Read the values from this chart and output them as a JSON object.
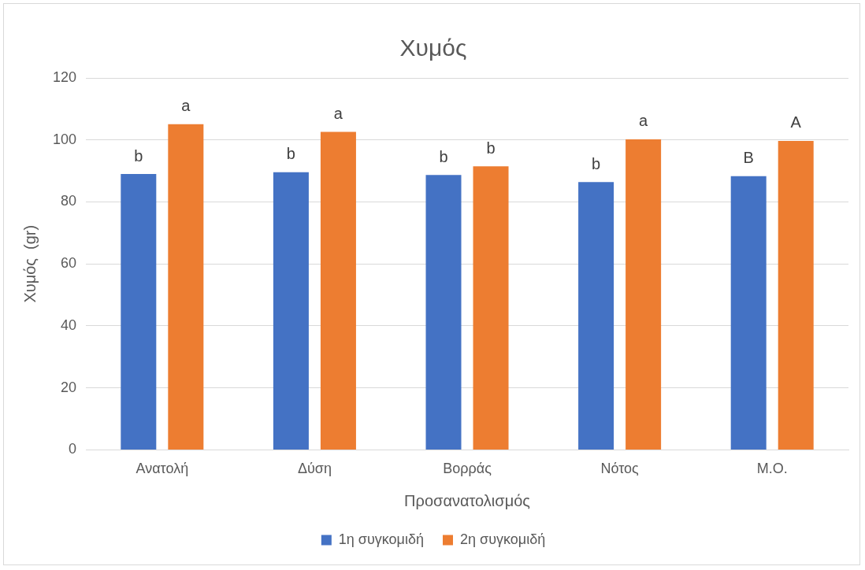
{
  "chart_data": {
    "type": "bar",
    "title": "Χυμός",
    "xlabel": "Προσανατολισμός",
    "ylabel": "Χυμός  (gr)",
    "categories": [
      "Ανατολή",
      "Δύση",
      "Βορράς",
      "Νότος",
      "Μ.Ο."
    ],
    "series": [
      {
        "name": "1η συγκομιδή",
        "color": "#4472c4",
        "values": [
          89.0,
          89.6,
          88.7,
          86.4,
          88.3
        ],
        "value_labels": [
          "b",
          "b",
          "b",
          "b",
          "B"
        ]
      },
      {
        "name": "2η συγκομιδή",
        "color": "#ed7d31",
        "values": [
          105.1,
          102.6,
          91.5,
          100.2,
          99.7
        ],
        "value_labels": [
          "a",
          "a",
          "b",
          "a",
          "A"
        ]
      }
    ],
    "ylim": [
      0,
      120
    ],
    "yticks": [
      0,
      20,
      40,
      60,
      80,
      100,
      120
    ],
    "grid": "y",
    "legend": "bottom"
  }
}
